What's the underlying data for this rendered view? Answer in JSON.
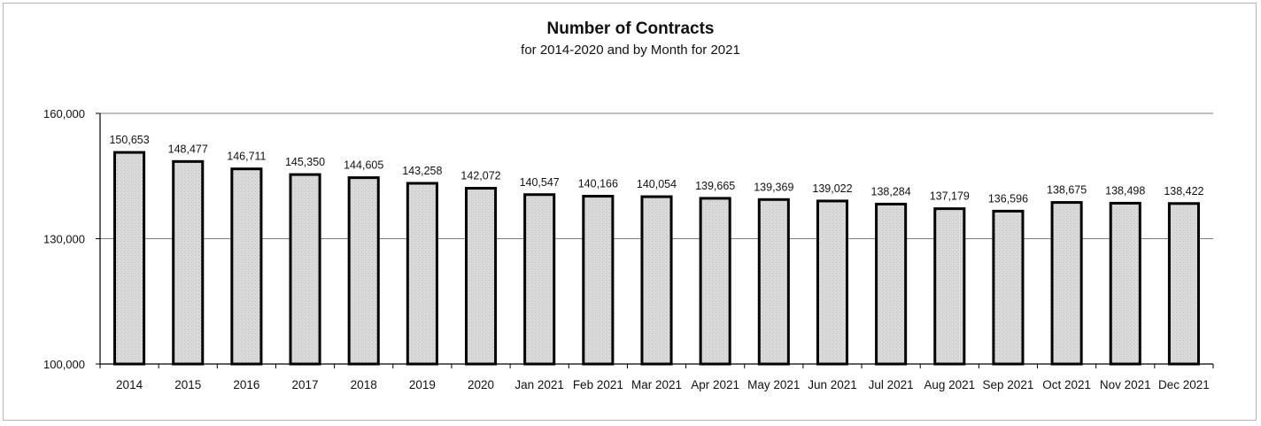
{
  "chart_data": {
    "type": "bar",
    "title": "Number of Contracts",
    "subtitle": "for 2014-2020 and by Month for 2021",
    "xlabel": "",
    "ylabel": "",
    "categories": [
      "2014",
      "2015",
      "2016",
      "2017",
      "2018",
      "2019",
      "2020",
      "Jan 2021",
      "Feb 2021",
      "Mar 2021",
      "Apr 2021",
      "May 2021",
      "Jun 2021",
      "Jul 2021",
      "Aug 2021",
      "Sep 2021",
      "Oct 2021",
      "Nov 2021",
      "Dec 2021"
    ],
    "values": [
      150653,
      148477,
      146711,
      145350,
      144605,
      143258,
      142072,
      140547,
      140166,
      140054,
      139665,
      139369,
      139022,
      138284,
      137179,
      136596,
      138675,
      138498,
      138422
    ],
    "value_labels": [
      "150,653",
      "148,477",
      "146,711",
      "145,350",
      "144,605",
      "143,258",
      "142,072",
      "140,547",
      "140,166",
      "140,054",
      "139,665",
      "139,369",
      "139,022",
      "138,284",
      "137,179",
      "136,596",
      "138,675",
      "138,498",
      "138,422"
    ],
    "ylim": [
      100000,
      160000
    ],
    "yticks": [
      100000,
      130000,
      160000
    ],
    "ytick_labels": [
      "100,000",
      "130,000",
      "160,000"
    ],
    "grid": true,
    "legend": "none",
    "colors": {
      "bar_fill": "#d9d9d9",
      "bar_stroke": "#000000",
      "grid": "#7f7f7f"
    }
  }
}
